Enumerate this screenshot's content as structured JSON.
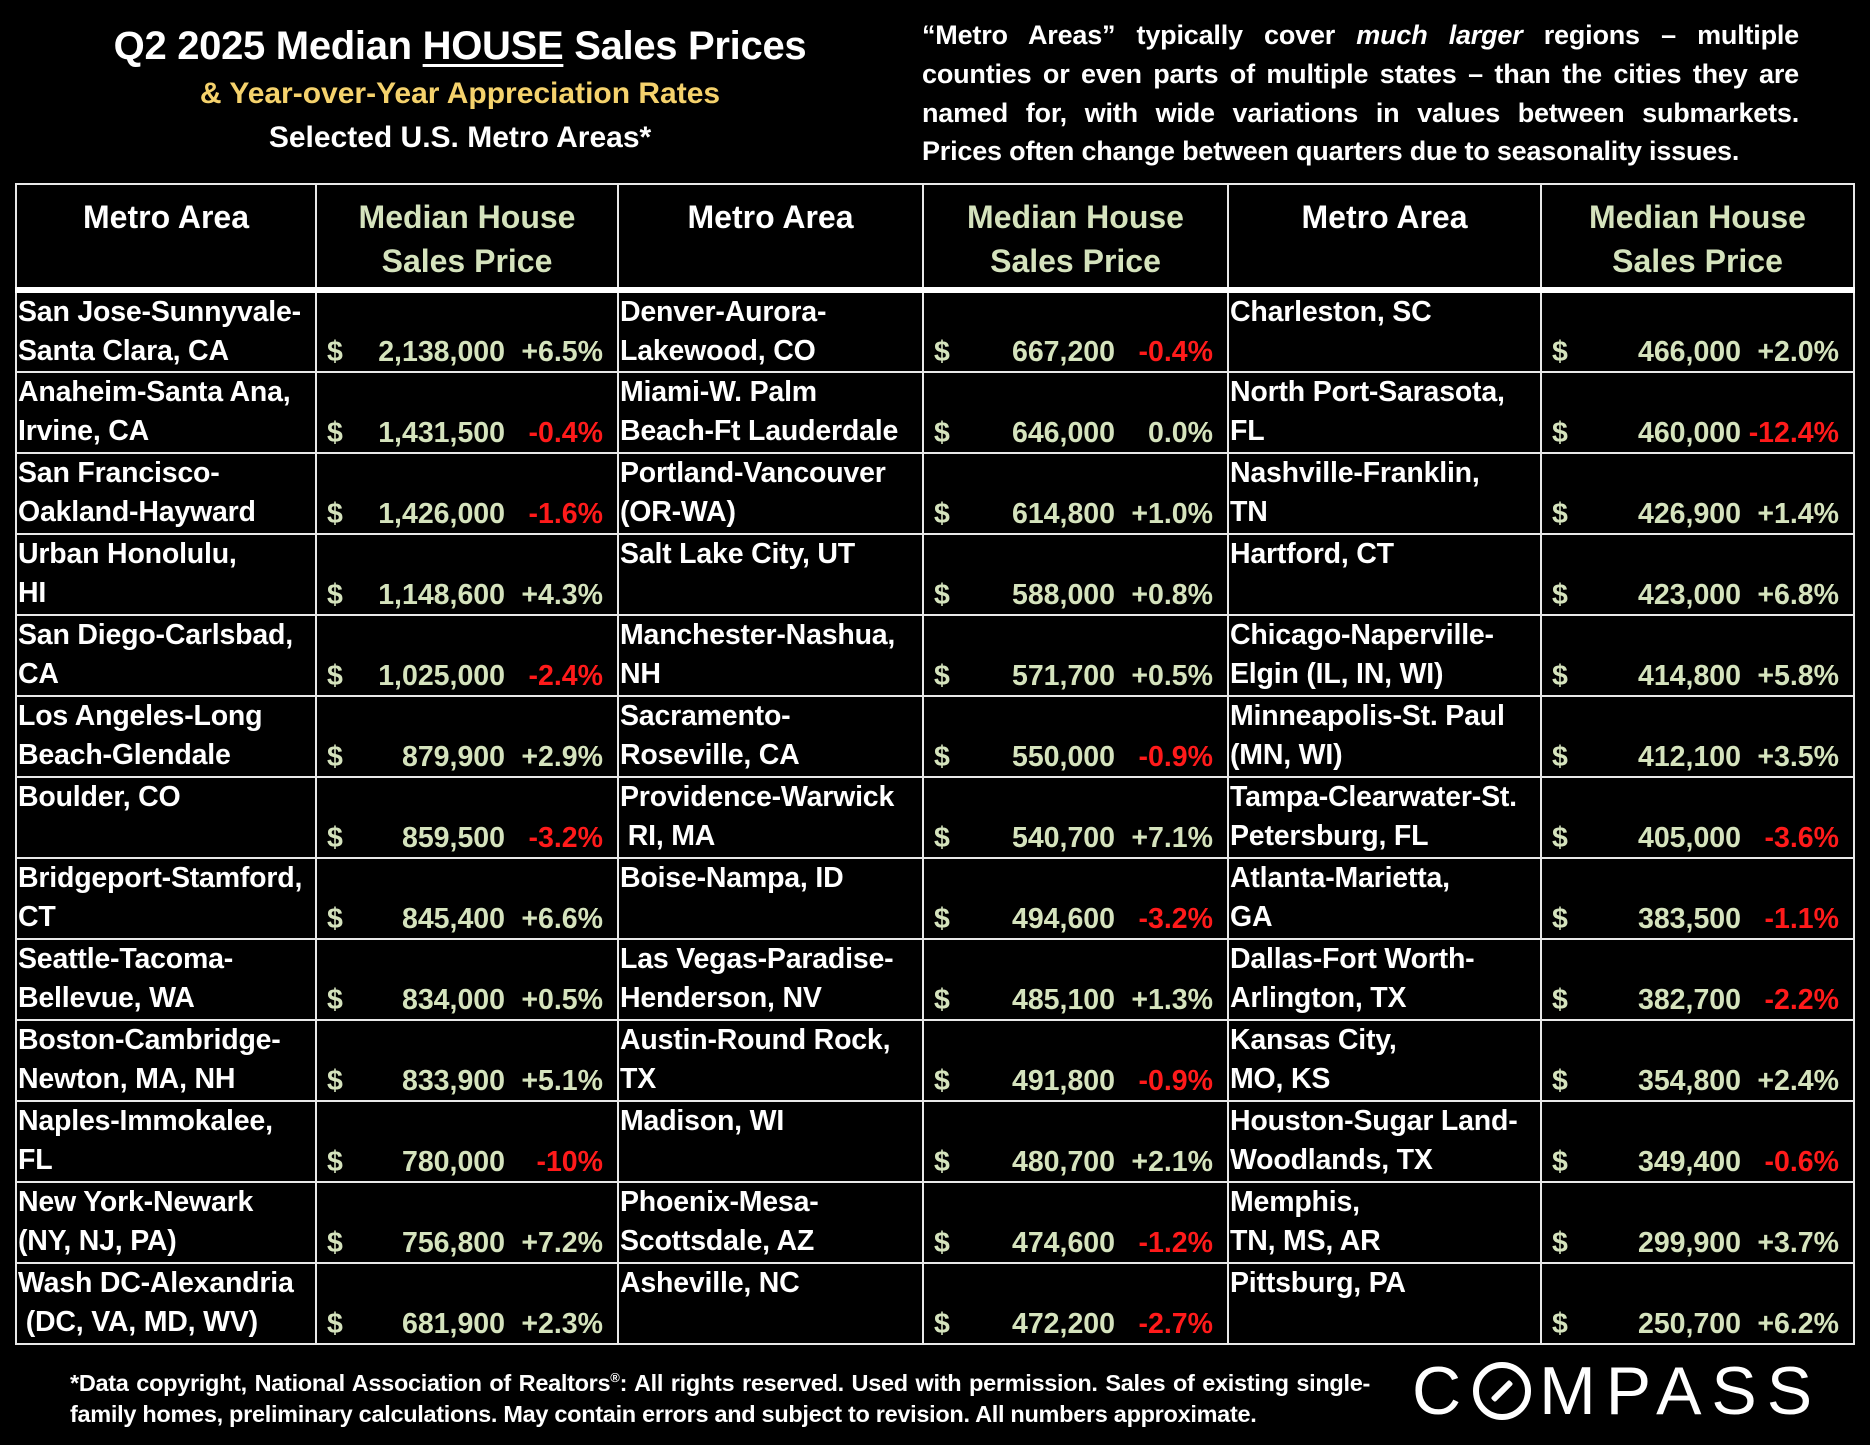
{
  "header": {
    "title_pre": "Q2 2025 Median ",
    "title_emph": "HOUSE",
    "title_post": " Sales Prices",
    "subtitle": "& Year-over-Year Appreciation Rates",
    "subtitle2": "Selected U.S. Metro Areas*"
  },
  "note": {
    "part1": "“Metro Areas” typically cover ",
    "emph": "much larger",
    "part2": " regions – multiple counties or even parts of multiple states – than the cities they are named for, with wide variations in values between submarkets. Prices often change between quarters due to seasonality issues."
  },
  "table": {
    "headers": [
      "Metro Area",
      "Median House Sales Price",
      "Metro Area",
      "Median House Sales Price",
      "Metro Area",
      "Median House Sales Price"
    ],
    "header_lines": {
      "metro": [
        "Metro Area"
      ],
      "price": [
        "Median House",
        "Sales Price"
      ]
    },
    "currency_symbol": "$",
    "rows": [
      [
        {
          "metro": [
            "San Jose-Sunnyvale-",
            "Santa Clara, CA"
          ],
          "price": "2,138,000",
          "change": "+6.5%",
          "neg": false
        },
        {
          "metro": [
            "Denver-Aurora-",
            "Lakewood, CO"
          ],
          "price": "667,200",
          "change": "-0.4%",
          "neg": true
        },
        {
          "metro": [
            "Charleston, SC",
            ""
          ],
          "price": "466,000",
          "change": "+2.0%",
          "neg": false
        }
      ],
      [
        {
          "metro": [
            "Anaheim-Santa Ana,",
            "Irvine, CA"
          ],
          "price": "1,431,500",
          "change": "-0.4%",
          "neg": true
        },
        {
          "metro": [
            "Miami-W. Palm",
            "Beach-Ft Lauderdale"
          ],
          "price": "646,000",
          "change": "0.0%",
          "neg": false
        },
        {
          "metro": [
            "North Port-Sarasota,",
            "FL"
          ],
          "price": "460,000",
          "change": "-12.4%",
          "neg": true
        }
      ],
      [
        {
          "metro": [
            "San Francisco-",
            "Oakland-Hayward"
          ],
          "price": "1,426,000",
          "change": "-1.6%",
          "neg": true
        },
        {
          "metro": [
            "Portland-Vancouver",
            "(OR-WA)"
          ],
          "price": "614,800",
          "change": "+1.0%",
          "neg": false
        },
        {
          "metro": [
            "Nashville-Franklin,",
            "TN"
          ],
          "price": "426,900",
          "change": "+1.4%",
          "neg": false
        }
      ],
      [
        {
          "metro": [
            "Urban Honolulu,",
            "HI"
          ],
          "price": "1,148,600",
          "change": "+4.3%",
          "neg": false
        },
        {
          "metro": [
            "Salt Lake City, UT",
            ""
          ],
          "price": "588,000",
          "change": "+0.8%",
          "neg": false
        },
        {
          "metro": [
            "Hartford, CT",
            ""
          ],
          "price": "423,000",
          "change": "+6.8%",
          "neg": false
        }
      ],
      [
        {
          "metro": [
            "San Diego-Carlsbad,",
            "CA"
          ],
          "price": "1,025,000",
          "change": "-2.4%",
          "neg": true
        },
        {
          "metro": [
            "Manchester-Nashua,",
            "NH"
          ],
          "price": "571,700",
          "change": "+0.5%",
          "neg": false
        },
        {
          "metro": [
            "Chicago-Naperville-",
            "Elgin (IL, IN, WI)"
          ],
          "price": "414,800",
          "change": "+5.8%",
          "neg": false
        }
      ],
      [
        {
          "metro": [
            "Los Angeles-Long",
            "Beach-Glendale"
          ],
          "price": "879,900",
          "change": "+2.9%",
          "neg": false
        },
        {
          "metro": [
            "Sacramento-",
            "Roseville, CA"
          ],
          "price": "550,000",
          "change": "-0.9%",
          "neg": true
        },
        {
          "metro": [
            "Minneapolis-St. Paul",
            "(MN, WI)"
          ],
          "price": "412,100",
          "change": "+3.5%",
          "neg": false
        }
      ],
      [
        {
          "metro": [
            "Boulder, CO",
            ""
          ],
          "price": "859,500",
          "change": "-3.2%",
          "neg": true
        },
        {
          "metro": [
            "Providence-Warwick",
            " RI, MA"
          ],
          "price": "540,700",
          "change": "+7.1%",
          "neg": false
        },
        {
          "metro": [
            "Tampa-Clearwater-St.",
            "Petersburg, FL"
          ],
          "price": "405,000",
          "change": "-3.6%",
          "neg": true
        }
      ],
      [
        {
          "metro": [
            "Bridgeport-Stamford,",
            "CT"
          ],
          "price": "845,400",
          "change": "+6.6%",
          "neg": false
        },
        {
          "metro": [
            "Boise-Nampa, ID",
            ""
          ],
          "price": "494,600",
          "change": "-3.2%",
          "neg": true
        },
        {
          "metro": [
            "Atlanta-Marietta,",
            "GA"
          ],
          "price": "383,500",
          "change": "-1.1%",
          "neg": true
        }
      ],
      [
        {
          "metro": [
            "Seattle-Tacoma-",
            "Bellevue, WA"
          ],
          "price": "834,000",
          "change": "+0.5%",
          "neg": false
        },
        {
          "metro": [
            "Las Vegas-Paradise-",
            "Henderson, NV"
          ],
          "price": "485,100",
          "change": "+1.3%",
          "neg": false
        },
        {
          "metro": [
            "Dallas-Fort Worth-",
            "Arlington, TX"
          ],
          "price": "382,700",
          "change": "-2.2%",
          "neg": true
        }
      ],
      [
        {
          "metro": [
            "Boston-Cambridge-",
            "Newton, MA, NH"
          ],
          "price": "833,900",
          "change": "+5.1%",
          "neg": false
        },
        {
          "metro": [
            "Austin-Round Rock,",
            "TX"
          ],
          "price": "491,800",
          "change": "-0.9%",
          "neg": true
        },
        {
          "metro": [
            "Kansas City,",
            "MO, KS"
          ],
          "price": "354,800",
          "change": "+2.4%",
          "neg": false
        }
      ],
      [
        {
          "metro": [
            "Naples-Immokalee,",
            "FL"
          ],
          "price": "780,000",
          "change": "-10%",
          "neg": true
        },
        {
          "metro": [
            "Madison, WI",
            ""
          ],
          "price": "480,700",
          "change": "+2.1%",
          "neg": false
        },
        {
          "metro": [
            "Houston-Sugar Land-",
            "Woodlands, TX"
          ],
          "price": "349,400",
          "change": "-0.6%",
          "neg": true
        }
      ],
      [
        {
          "metro": [
            "New York-Newark",
            "(NY, NJ, PA)"
          ],
          "price": "756,800",
          "change": "+7.2%",
          "neg": false
        },
        {
          "metro": [
            "Phoenix-Mesa-",
            "Scottsdale, AZ"
          ],
          "price": "474,600",
          "change": "-1.2%",
          "neg": true
        },
        {
          "metro": [
            "Memphis,",
            "TN, MS, AR"
          ],
          "price": "299,900",
          "change": "+3.7%",
          "neg": false
        }
      ],
      [
        {
          "metro": [
            "Wash DC-Alexandria",
            " (DC, VA, MD, WV)"
          ],
          "price": "681,900",
          "change": "+2.3%",
          "neg": false
        },
        {
          "metro": [
            "Asheville, NC",
            ""
          ],
          "price": "472,200",
          "change": "-2.7%",
          "neg": true
        },
        {
          "metro": [
            "Pittsburg, PA",
            ""
          ],
          "price": "250,700",
          "change": "+6.2%",
          "neg": false
        }
      ]
    ]
  },
  "footnote": {
    "line_pre": "*Data copyright, National Association of Realtors",
    "reg": "®",
    "line_post": ": All rights reserved. Used with permission. Sales of existing single-family homes, preliminary calculations. May contain errors and subject to revision. All numbers approximate."
  },
  "logo": {
    "c": "C",
    "rest": "MPASS",
    "alt": "COMPASS"
  },
  "colors": {
    "background": "#000000",
    "text": "#ffffff",
    "subtitle_yellow": "#f5d26c",
    "price_green": "#d5e3bd",
    "negative_red": "#ff1a1a",
    "grid": "#e8e8e8"
  }
}
